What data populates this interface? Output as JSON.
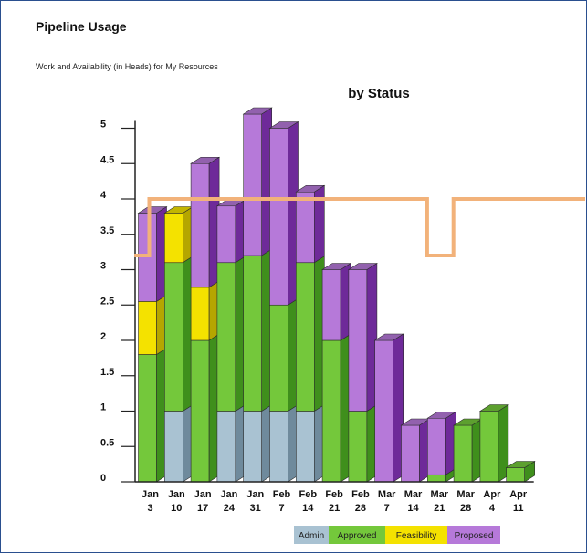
{
  "panel": {
    "title": "Pipeline Usage",
    "subtitle": "Work and Availability (in Heads) for My Resources"
  },
  "chart_data": {
    "type": "bar",
    "stacked": true,
    "title": "by Status",
    "categories": [
      [
        "Jan",
        "3"
      ],
      [
        "Jan",
        "10"
      ],
      [
        "Jan",
        "17"
      ],
      [
        "Jan",
        "24"
      ],
      [
        "Jan",
        "31"
      ],
      [
        "Feb",
        "7"
      ],
      [
        "Feb",
        "14"
      ],
      [
        "Feb",
        "21"
      ],
      [
        "Feb",
        "28"
      ],
      [
        "Mar",
        "7"
      ],
      [
        "Mar",
        "14"
      ],
      [
        "Mar",
        "21"
      ],
      [
        "Mar",
        "28"
      ],
      [
        "Apr",
        "4"
      ],
      [
        "Apr",
        "11"
      ]
    ],
    "y_ticks": [
      "0",
      "0.5",
      "1",
      "1.5",
      "2",
      "2.5",
      "3",
      "3.5",
      "4",
      "4.5",
      "5"
    ],
    "ylim": [
      0,
      5
    ],
    "series": [
      {
        "name": "Admin",
        "color": "#a9c2d2",
        "dark": "#6f8a9c",
        "values": [
          0,
          1,
          0,
          1,
          1,
          1,
          1,
          0,
          0,
          0,
          0,
          0,
          0,
          0,
          0
        ]
      },
      {
        "name": "Approved",
        "color": "#74c83b",
        "dark": "#3f8f1c",
        "values": [
          1.8,
          2.1,
          2,
          2.1,
          2.2,
          1.5,
          2.1,
          2,
          1,
          0,
          0,
          0.1,
          0.8,
          1,
          0.2
        ]
      },
      {
        "name": "Feasibility",
        "color": "#f4e200",
        "dark": "#b5a600",
        "values": [
          0.75,
          0.7,
          0.75,
          0,
          0,
          0,
          0,
          0,
          0,
          0,
          0,
          0,
          0,
          0,
          0
        ]
      },
      {
        "name": "Proposed",
        "color": "#b679d9",
        "dark": "#6e2a99",
        "values": [
          1.25,
          0,
          1.75,
          0.8,
          2,
          2.5,
          1,
          1,
          2,
          2,
          0.8,
          0.8,
          0,
          0,
          0
        ]
      }
    ],
    "availability": {
      "color": "#f2b27a",
      "values": [
        4,
        4,
        4,
        4,
        4,
        4,
        4,
        4,
        4,
        4,
        4,
        3.2,
        4,
        4,
        4
      ],
      "jan3_start": 3.2
    },
    "legend_position": "bottom",
    "grid": false
  }
}
